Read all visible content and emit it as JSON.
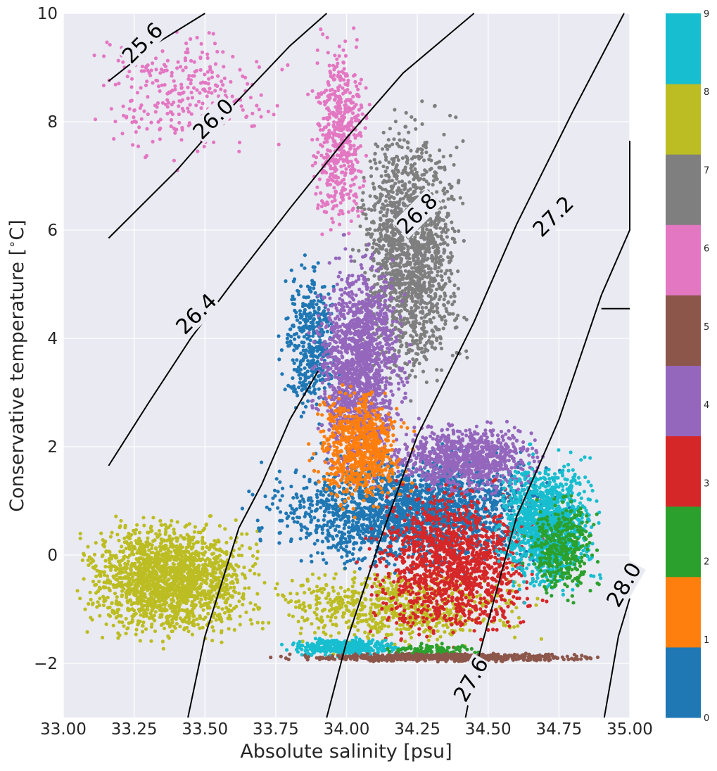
{
  "chart_data": {
    "type": "scatter",
    "title": "",
    "xlabel": "Absolute salinity [psu]",
    "ylabel": "Conservative temperature [$^\\circ$C]",
    "ylabel_parts": {
      "main": "Conservative temperature [",
      "deg": "∘",
      "unit": "C]"
    },
    "xlim": [
      33.0,
      35.0
    ],
    "ylim": [
      -3.0,
      10.0
    ],
    "grid": true,
    "x_ticks": [
      33.0,
      33.25,
      33.5,
      33.75,
      34.0,
      34.25,
      34.5,
      34.75,
      35.0
    ],
    "x_tick_labels": [
      "33.00",
      "33.25",
      "33.50",
      "33.75",
      "34.00",
      "34.25",
      "34.50",
      "34.75",
      "35.00"
    ],
    "y_ticks": [
      -2,
      0,
      2,
      4,
      6,
      8,
      10
    ],
    "y_tick_labels": [
      "−2",
      "0",
      "2",
      "4",
      "6",
      "8",
      "10"
    ],
    "colorbar": {
      "min": 0,
      "max": 9,
      "ticks": [
        0,
        1,
        2,
        3,
        4,
        5,
        6,
        7,
        8,
        9
      ],
      "tick_labels": [
        "0",
        "1",
        "2",
        "3",
        "4",
        "5",
        "6",
        "7",
        "8",
        "9"
      ],
      "colors": [
        "#1f77b4",
        "#ff7f0e",
        "#2ca02c",
        "#d62728",
        "#9467bd",
        "#8c564b",
        "#e377c2",
        "#7f7f7f",
        "#bcbd22",
        "#17becf"
      ]
    },
    "density_contours": [
      {
        "label": "25.6",
        "points": [
          [
            33.16,
            8.75
          ],
          [
            33.33,
            9.45
          ],
          [
            33.5,
            10.15
          ]
        ],
        "label_at": [
          33.28,
          9.45
        ],
        "label_angle": -45
      },
      {
        "label": "26.0",
        "points": [
          [
            33.16,
            5.85
          ],
          [
            33.4,
            7.1
          ],
          [
            33.6,
            8.3
          ],
          [
            33.8,
            9.4
          ],
          [
            33.93,
            10.1
          ]
        ],
        "label_at": [
          33.53,
          8.05
        ],
        "label_angle": -45
      },
      {
        "label": "26.4",
        "points": [
          [
            33.16,
            1.65
          ],
          [
            33.3,
            2.8
          ],
          [
            33.45,
            4.0
          ],
          [
            33.6,
            5.05
          ],
          [
            33.8,
            6.4
          ],
          [
            34.0,
            7.7
          ],
          [
            34.2,
            8.9
          ],
          [
            34.45,
            10.15
          ]
        ],
        "label_at": [
          33.47,
          4.45
        ],
        "label_angle": -45
      },
      {
        "label": "26.4_lower",
        "points": [
          [
            33.44,
            -3.05
          ],
          [
            33.5,
            -1.5
          ],
          [
            33.62,
            0.5
          ],
          [
            33.7,
            1.3
          ],
          [
            33.8,
            2.5
          ],
          [
            33.9,
            3.4
          ]
        ],
        "label_at": null,
        "label_angle": 0
      },
      {
        "label": "26.8",
        "points": [
          [
            33.93,
            -3.05
          ],
          [
            34.0,
            -1.6
          ],
          [
            34.12,
            0.3
          ],
          [
            34.25,
            2.2
          ],
          [
            34.45,
            4.3
          ],
          [
            34.6,
            6.1
          ],
          [
            34.8,
            8.2
          ],
          [
            34.98,
            10.0
          ]
        ],
        "label_at": [
          34.25,
          6.3
        ],
        "label_angle": -45
      },
      {
        "label": "27.2",
        "points": [
          [
            34.42,
            -3.05
          ],
          [
            34.45,
            -2.2
          ],
          [
            34.6,
            0.7
          ],
          [
            34.75,
            2.5
          ],
          [
            34.9,
            4.8
          ],
          [
            35.0,
            6.0
          ],
          [
            35.02,
            7.65
          ]
        ],
        "label_at": [
          34.73,
          6.25
        ],
        "label_angle": -45
      },
      {
        "label": "27.6",
        "points": [
          [
            34.91,
            -3.05
          ],
          [
            34.96,
            -1.5
          ],
          [
            35.0,
            -0.8
          ]
        ],
        "label_at": [
          34.44,
          -2.3
        ],
        "label_angle": -60
      },
      {
        "label": "28.0",
        "points": [
          [
            34.9,
            4.55
          ],
          [
            35.0,
            4.55
          ]
        ],
        "label_at": [
          34.98,
          -0.55
        ],
        "label_angle": -60
      }
    ],
    "series": [
      {
        "color_index": 8,
        "color": "#bcbd22",
        "clusters": [
          {
            "x": [
              33.0,
              33.75
            ],
            "y": [
              -1.8,
              0.9
            ],
            "n": 1800
          },
          {
            "x": [
              33.6,
              34.75
            ],
            "y": [
              -1.9,
              0.0
            ],
            "n": 700
          }
        ]
      },
      {
        "color_index": 0,
        "color": "#1f77b4",
        "clusters": [
          {
            "x": [
              33.6,
              34.9
            ],
            "y": [
              -0.5,
              2.2
            ],
            "n": 2200
          },
          {
            "x": [
              33.75,
              34.0
            ],
            "y": [
              2.0,
              5.8
            ],
            "n": 400
          }
        ]
      },
      {
        "color_index": 6,
        "color": "#e377c2",
        "clusters": [
          {
            "x": [
              33.0,
              33.9
            ],
            "y": [
              7.0,
              10.0
            ],
            "n": 300
          },
          {
            "x": [
              33.85,
              34.1
            ],
            "y": [
              5.5,
              10.0
            ],
            "n": 500
          }
        ]
      },
      {
        "color_index": 7,
        "color": "#7f7f7f",
        "clusters": [
          {
            "x": [
              34.0,
              34.45
            ],
            "y": [
              2.5,
              8.7
            ],
            "n": 1600
          }
        ]
      },
      {
        "color_index": 4,
        "color": "#9467bd",
        "clusters": [
          {
            "x": [
              33.85,
              34.25
            ],
            "y": [
              1.0,
              6.0
            ],
            "n": 1500
          },
          {
            "x": [
              34.1,
              34.75
            ],
            "y": [
              1.0,
              2.6
            ],
            "n": 900
          }
        ]
      },
      {
        "color_index": 1,
        "color": "#ff7f0e",
        "clusters": [
          {
            "x": [
              33.85,
              34.25
            ],
            "y": [
              0.6,
              3.3
            ],
            "n": 700
          }
        ]
      },
      {
        "color_index": 3,
        "color": "#d62728",
        "clusters": [
          {
            "x": [
              34.0,
              34.75
            ],
            "y": [
              -1.9,
              1.6
            ],
            "n": 1300
          }
        ]
      },
      {
        "color_index": 9,
        "color": "#17becf",
        "clusters": [
          {
            "x": [
              34.5,
              34.92
            ],
            "y": [
              -1.0,
              2.1
            ],
            "n": 1200
          },
          {
            "x": [
              33.75,
              34.25
            ],
            "y": [
              -1.9,
              -1.5
            ],
            "n": 400
          }
        ]
      },
      {
        "color_index": 2,
        "color": "#2ca02c",
        "clusters": [
          {
            "x": [
              34.6,
              34.92
            ],
            "y": [
              -1.0,
              1.3
            ],
            "n": 350
          },
          {
            "x": [
              34.1,
              34.5
            ],
            "y": [
              -1.95,
              -1.6
            ],
            "n": 150
          }
        ]
      },
      {
        "color_index": 5,
        "color": "#8c564b",
        "clusters": [
          {
            "x": [
              33.7,
              35.0
            ],
            "y": [
              -1.98,
              -1.8
            ],
            "n": 700
          }
        ]
      }
    ]
  }
}
